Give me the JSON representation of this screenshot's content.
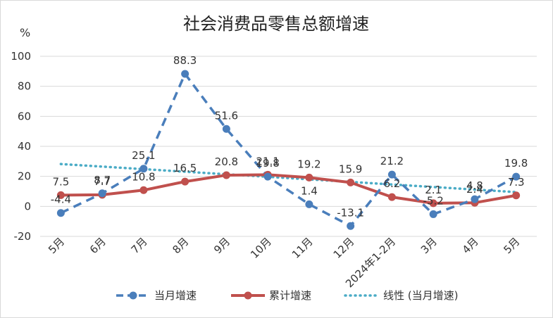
{
  "chart_data": {
    "type": "line",
    "title": "社会消费品零售总额增速",
    "y_unit": "%",
    "categories": [
      "5月",
      "6月",
      "7月",
      "8月",
      "9月",
      "10月",
      "11月",
      "12月",
      "2024年1-2月",
      "3月",
      "4月",
      "5月"
    ],
    "ylim": [
      -20,
      100
    ],
    "yticks": [
      -20,
      0,
      20,
      40,
      60,
      80,
      100
    ],
    "grid": true,
    "legend_position": "bottom",
    "series": [
      {
        "name": "当月增速",
        "values": [
          -4.4,
          8.7,
          25.1,
          88.3,
          51.6,
          19.8,
          1.4,
          -13.1,
          21.2,
          -5.2,
          4.8,
          19.8
        ],
        "labels": [
          "-4.4",
          "8.7",
          "25.1",
          "88.3",
          "51.6",
          "19.8",
          "1.4",
          "-13.1",
          "21.2",
          "-5.2",
          "4.8",
          "19.8"
        ],
        "color": "#4A7EBB",
        "style": "dashed-marker"
      },
      {
        "name": "累计增速",
        "values": [
          7.5,
          7.7,
          10.8,
          16.5,
          20.8,
          21.1,
          19.2,
          15.9,
          6.2,
          2.1,
          2.4,
          7.3
        ],
        "labels": [
          "7.5",
          "7.7",
          "10.8",
          "16.5",
          "20.8",
          "21.1",
          "19.2",
          "15.9",
          "6.2",
          "2.1",
          "2.4",
          "7.3"
        ],
        "color": "#C0504D",
        "style": "solid-marker"
      },
      {
        "name": "线性 (当月增速)",
        "values": [
          28.2,
          26.5,
          24.8,
          23.1,
          21.4,
          19.7,
          18.0,
          16.3,
          14.6,
          12.9,
          11.2,
          9.5
        ],
        "color": "#4BACC6",
        "style": "dotted"
      }
    ]
  }
}
